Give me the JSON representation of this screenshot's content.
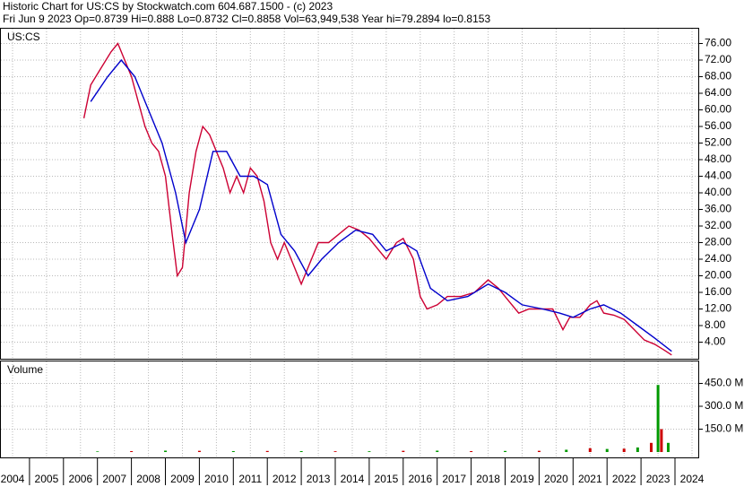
{
  "header": {
    "line1": "Historic Chart for US:CS by Stockwatch.com 604.687.1500 - (c) 2023",
    "line2": "Fri Jun  9 2023   Op=0.8739   Hi=0.888   Lo=0.8732   Cl=0.8858   Vol=63,949,538   Year hi=79.2894   lo=0.8153"
  },
  "chart_data": [
    {
      "type": "line",
      "title": "US:CS",
      "xlim": [
        2004,
        2024
      ],
      "xticks": [
        2004,
        2005,
        2006,
        2007,
        2008,
        2009,
        2010,
        2011,
        2012,
        2013,
        2014,
        2015,
        2016,
        2017,
        2018,
        2019,
        2020,
        2021,
        2022,
        2023,
        2024
      ],
      "ylim": [
        0,
        80
      ],
      "yticks": [
        {
          "value": 4,
          "label": "4.00"
        },
        {
          "value": 8,
          "label": "8.00"
        },
        {
          "value": 12,
          "label": "12.00"
        },
        {
          "value": 16,
          "label": "16.00"
        },
        {
          "value": 20,
          "label": "20.00"
        },
        {
          "value": 24,
          "label": "24.00"
        },
        {
          "value": 28,
          "label": "28.00"
        },
        {
          "value": 32,
          "label": "32.00"
        },
        {
          "value": 36,
          "label": "36.00"
        },
        {
          "value": 40,
          "label": "40.00"
        },
        {
          "value": 44,
          "label": "44.00"
        },
        {
          "value": 48,
          "label": "48.00"
        },
        {
          "value": 52,
          "label": "52.00"
        },
        {
          "value": 56,
          "label": "56.00"
        },
        {
          "value": 60,
          "label": "60.00"
        },
        {
          "value": 64,
          "label": "64.00"
        },
        {
          "value": 68,
          "label": "68.00"
        },
        {
          "value": 72,
          "label": "72.00"
        },
        {
          "value": 76,
          "label": "76.00"
        }
      ],
      "grid": true,
      "series": [
        {
          "color": "#cc0033",
          "x": [
            2006.1,
            2006.3,
            2006.6,
            2006.9,
            2007.1,
            2007.3,
            2007.5,
            2007.7,
            2007.9,
            2008.1,
            2008.3,
            2008.5,
            2008.7,
            2008.85,
            2009.0,
            2009.2,
            2009.4,
            2009.6,
            2009.8,
            2010.0,
            2010.2,
            2010.4,
            2010.6,
            2010.8,
            2011.0,
            2011.2,
            2011.4,
            2011.6,
            2011.8,
            2012.0,
            2012.2,
            2012.5,
            2012.8,
            2013.0,
            2013.3,
            2013.6,
            2013.9,
            2014.2,
            2014.5,
            2014.8,
            2015.0,
            2015.3,
            2015.5,
            2015.8,
            2016.0,
            2016.2,
            2016.5,
            2016.8,
            2017.2,
            2017.6,
            2018.0,
            2018.3,
            2018.6,
            2018.9,
            2019.2,
            2019.6,
            2019.9,
            2020.2,
            2020.4,
            2020.7,
            2021.0,
            2021.2,
            2021.4,
            2021.7,
            2022.0,
            2022.3,
            2022.6,
            2022.9,
            2023.2,
            2023.4
          ],
          "values": [
            58,
            66,
            70,
            74,
            76,
            72,
            68,
            62,
            56,
            52,
            50,
            44,
            30,
            20,
            22,
            40,
            50,
            56,
            54,
            50,
            46,
            40,
            44,
            40,
            46,
            44,
            38,
            28,
            24,
            28,
            24,
            18,
            24,
            28,
            28,
            30,
            32,
            31,
            29,
            26,
            24,
            28,
            29,
            24,
            15,
            12,
            13,
            15,
            15,
            16,
            19,
            17,
            14,
            11,
            12,
            12,
            12,
            7,
            10,
            10,
            13,
            14,
            11,
            10.5,
            9.5,
            7,
            4.5,
            3.5,
            2,
            0.9
          ]
        },
        {
          "color": "#0000cc",
          "x": [
            2006.3,
            2006.8,
            2007.2,
            2007.6,
            2008.0,
            2008.4,
            2008.8,
            2009.1,
            2009.5,
            2009.9,
            2010.3,
            2010.7,
            2011.1,
            2011.5,
            2011.9,
            2012.3,
            2012.7,
            2013.1,
            2013.6,
            2014.1,
            2014.6,
            2015.0,
            2015.5,
            2015.9,
            2016.3,
            2016.8,
            2017.4,
            2018.0,
            2018.5,
            2019.0,
            2019.6,
            2020.1,
            2020.5,
            2021.0,
            2021.4,
            2021.9,
            2022.4,
            2022.9,
            2023.4
          ],
          "values": [
            62,
            68,
            72,
            68,
            60,
            52,
            40,
            28,
            36,
            50,
            50,
            44,
            44,
            42,
            30,
            26,
            20,
            24,
            28,
            31,
            30,
            26,
            28,
            26,
            17,
            14,
            15,
            18,
            16,
            13,
            12,
            11,
            10,
            12,
            13,
            11,
            8,
            5,
            1.8
          ]
        }
      ]
    },
    {
      "type": "bar",
      "title": "Volume",
      "xlim": [
        2004,
        2024
      ],
      "ylim": [
        0,
        600000000
      ],
      "yticks": [
        {
          "value": 150000000,
          "label": "150.0 M"
        },
        {
          "value": 300000000,
          "label": "300.0 M"
        },
        {
          "value": 450000000,
          "label": "450.0 M"
        }
      ],
      "grid": true,
      "colors": [
        "#009900",
        "#cc0000"
      ],
      "x": [
        2006.5,
        2007.5,
        2008.5,
        2009.5,
        2010.5,
        2011.5,
        2012.5,
        2013.5,
        2014.5,
        2015.5,
        2016.5,
        2017.5,
        2018.5,
        2019.5,
        2020.3,
        2021.0,
        2021.5,
        2022.0,
        2022.4,
        2022.8,
        2023.0,
        2023.1,
        2023.3
      ],
      "values": [
        4000000,
        6000000,
        9000000,
        8000000,
        6000000,
        7000000,
        6000000,
        5000000,
        5000000,
        8000000,
        9000000,
        6000000,
        7000000,
        8000000,
        15000000,
        25000000,
        20000000,
        22000000,
        30000000,
        60000000,
        440000000,
        150000000,
        60000000
      ]
    }
  ]
}
